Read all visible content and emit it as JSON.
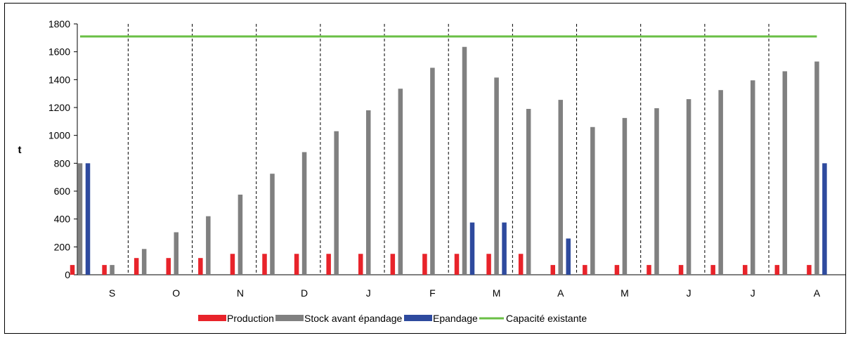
{
  "chart_data": {
    "type": "bar",
    "ylabel": "t",
    "ylim": [
      0,
      1800
    ],
    "yticks": [
      0,
      200,
      400,
      600,
      800,
      1000,
      1200,
      1400,
      1600,
      1800
    ],
    "month_labels": [
      "S",
      "O",
      "N",
      "D",
      "J",
      "F",
      "M",
      "A",
      "M",
      "J",
      "J",
      "A"
    ],
    "grid": false,
    "legend_position": "bottom",
    "series": [
      {
        "name": "Production",
        "color": "#e8232a",
        "values": [
          70,
          70,
          120,
          120,
          120,
          150,
          150,
          150,
          150,
          150,
          150,
          150,
          150,
          150,
          150,
          70,
          70,
          70,
          70,
          70,
          70,
          70,
          70,
          70
        ]
      },
      {
        "name": "Stock avant épandage",
        "color": "#808080",
        "values": [
          800,
          70,
          185,
          305,
          420,
          575,
          725,
          880,
          1030,
          1180,
          1335,
          1485,
          1635,
          1415,
          1190,
          1255,
          1060,
          1125,
          1195,
          1260,
          1325,
          1395,
          1460,
          1530
        ]
      },
      {
        "name": "Epandage",
        "color": "#2e4a9e",
        "values": [
          800,
          0,
          0,
          0,
          0,
          0,
          0,
          0,
          0,
          0,
          0,
          0,
          375,
          375,
          0,
          260,
          0,
          0,
          0,
          0,
          0,
          0,
          0,
          800
        ]
      },
      {
        "name": "Capacité existante",
        "color": "#6abf45",
        "type": "line",
        "values": [
          1710,
          1710,
          1710,
          1710,
          1710,
          1710,
          1710,
          1710,
          1710,
          1710,
          1710,
          1710,
          1710,
          1710,
          1710,
          1710,
          1710,
          1710,
          1710,
          1710,
          1710,
          1710,
          1710,
          1710
        ]
      }
    ]
  }
}
